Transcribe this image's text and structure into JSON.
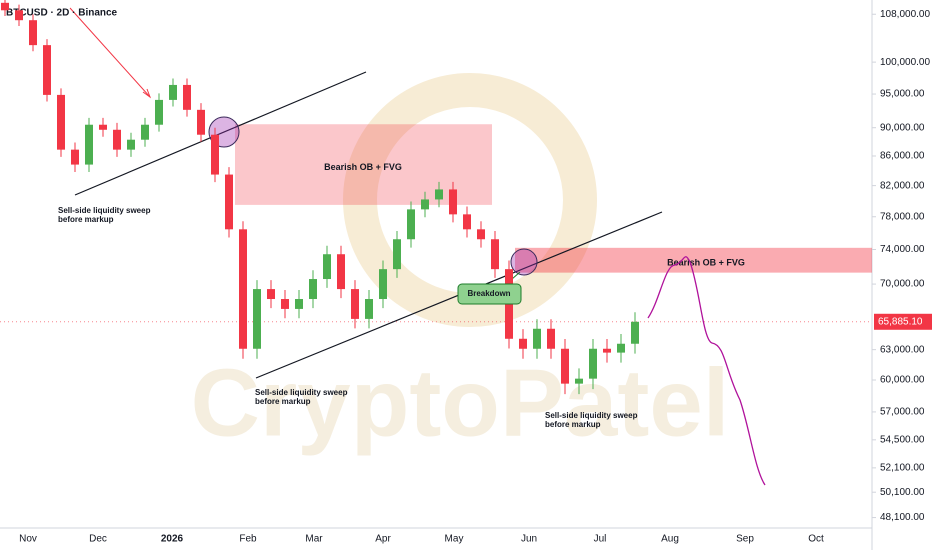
{
  "chart_data": {
    "type": "candlestick",
    "title": "BTCUSD · 2D · Binance",
    "watermark": "CryptoPatel",
    "log_scale": true,
    "up_color": "#4caf50",
    "down_color": "#f23645",
    "ylim": [
      110500,
      47300
    ],
    "yticks": [
      {
        "value": 108000,
        "label": "108,000.00"
      },
      {
        "value": 100000,
        "label": "100,000.00"
      },
      {
        "value": 95000,
        "label": "95,000.00"
      },
      {
        "value": 90000,
        "label": "90,000.00"
      },
      {
        "value": 86000,
        "label": "86,000.00"
      },
      {
        "value": 82000,
        "label": "82,000.00"
      },
      {
        "value": 78000,
        "label": "78,000.00"
      },
      {
        "value": 74000,
        "label": "74,000.00"
      },
      {
        "value": 70000,
        "label": "70,000.00"
      },
      {
        "value": 63000,
        "label": "63,000.00"
      },
      {
        "value": 60000,
        "label": "60,000.00"
      },
      {
        "value": 57000,
        "label": "57,000.00"
      },
      {
        "value": 54500,
        "label": "54,500.00"
      },
      {
        "value": 52100,
        "label": "52,100.00"
      },
      {
        "value": 50100,
        "label": "50,100.00"
      },
      {
        "value": 48100,
        "label": "48,100.00"
      }
    ],
    "x_labels": [
      "Nov",
      "Dec",
      "2026",
      "Feb",
      "Mar",
      "Apr",
      "May",
      "Jun",
      "Jul",
      "Aug",
      "Sep",
      "Oct"
    ],
    "last_price": {
      "value": 65885.1,
      "label": "65,885.10"
    },
    "open": [
      110000,
      108690,
      106970,
      102770,
      94870,
      86880,
      84820,
      90430,
      89700,
      86880,
      88280,
      90430,
      94110,
      96400,
      92620,
      88990,
      83470,
      76440,
      63090,
      69440,
      68340,
      67260,
      68340,
      70570,
      73440,
      69440,
      66190,
      68340,
      71700,
      75230,
      78930,
      80200,
      81500,
      78300,
      76440,
      75230,
      71700,
      64110,
      63090,
      65150,
      63090,
      59650,
      60130,
      63090,
      62700,
      63600
    ],
    "high": [
      111000,
      109690,
      107970,
      103770,
      95870,
      87880,
      91430,
      91430,
      90700,
      89280,
      91430,
      95110,
      97400,
      97400,
      93620,
      89990,
      84470,
      77440,
      70440,
      70440,
      69340,
      69340,
      71570,
      74440,
      74440,
      70440,
      69340,
      72700,
      76230,
      79930,
      81200,
      82500,
      82500,
      79300,
      77440,
      76230,
      72700,
      65110,
      66150,
      66150,
      64090,
      61130,
      64090,
      64090,
      64600,
      66900
    ],
    "low": [
      107690,
      105970,
      101770,
      93870,
      85880,
      83820,
      83820,
      88700,
      85880,
      85880,
      87280,
      89430,
      93110,
      91620,
      87990,
      82470,
      75440,
      62090,
      62090,
      67340,
      66260,
      66260,
      67340,
      69570,
      68440,
      65190,
      65190,
      67340,
      70700,
      74230,
      77930,
      79200,
      77300,
      75440,
      74230,
      70700,
      63110,
      62090,
      62090,
      62090,
      58650,
      58650,
      59130,
      61700,
      61700,
      62600
    ],
    "close": [
      108690,
      106970,
      102770,
      94870,
      86880,
      84820,
      90430,
      89700,
      86880,
      88280,
      90430,
      94110,
      96400,
      92620,
      88990,
      83470,
      76440,
      63090,
      69440,
      68340,
      67260,
      68340,
      70570,
      73440,
      69440,
      66190,
      68340,
      71700,
      75230,
      78930,
      80200,
      81500,
      78300,
      76440,
      75230,
      71700,
      64110,
      63090,
      65150,
      63090,
      59650,
      60130,
      63090,
      62700,
      63600,
      65885.1
    ],
    "zones": [
      {
        "label": "Bearish OB + FVG",
        "top": 90500,
        "bottom": 79500
      },
      {
        "label": "Bearish OB + FVG",
        "top": 74200,
        "bottom": 71300
      }
    ],
    "annotations": [
      {
        "line1": "Sell-side liquidity sweep",
        "line2": "before markup"
      },
      {
        "line1": "Sell-side liquidity sweep",
        "line2": "before markup"
      },
      {
        "line1": "Sell-side liquidity sweep",
        "line2": "before markup"
      }
    ],
    "callout": "Breakdown"
  }
}
